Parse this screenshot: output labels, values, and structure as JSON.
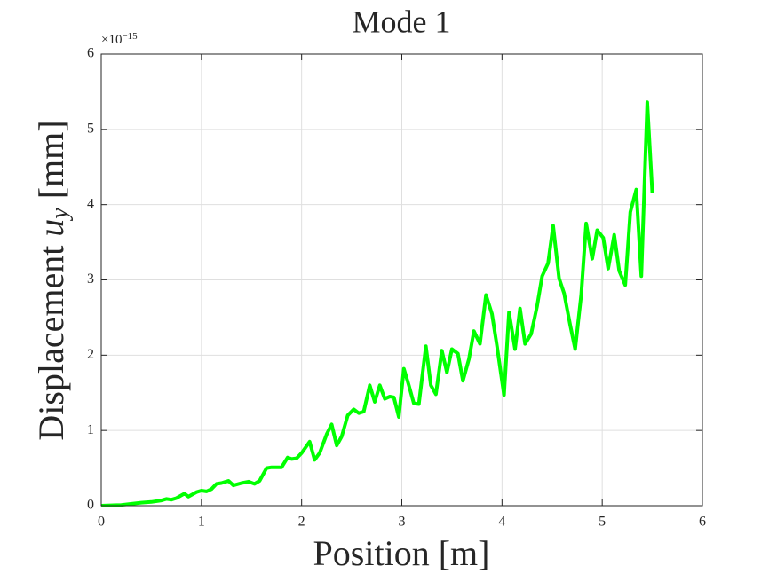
{
  "chart_data": {
    "type": "line",
    "title": "Mode 1",
    "xlabel": "Position [m]",
    "ylabel": {
      "text": "Displacement",
      "symbol": "u",
      "subscript": "y",
      "unit": "[mm]"
    },
    "y_exponent": {
      "base": "×10",
      "power": "−15"
    },
    "xlim": [
      0,
      6
    ],
    "xticks": [
      0,
      1,
      2,
      3,
      4,
      5,
      6
    ],
    "ylim": [
      0,
      6
    ],
    "yticks": [
      0,
      1,
      2,
      3,
      4,
      5,
      6
    ],
    "grid": true,
    "series": [
      {
        "color": "#00ff00",
        "x": [
          0,
          0.2,
          0.4,
          0.5,
          0.6,
          0.65,
          0.7,
          0.75,
          0.83,
          0.87,
          0.95,
          1.0,
          1.05,
          1.1,
          1.15,
          1.2,
          1.27,
          1.32,
          1.4,
          1.47,
          1.53,
          1.58,
          1.65,
          1.7,
          1.8,
          1.86,
          1.9,
          1.95,
          2.0,
          2.08,
          2.13,
          2.18,
          2.25,
          2.3,
          2.35,
          2.4,
          2.46,
          2.52,
          2.57,
          2.62,
          2.68,
          2.73,
          2.78,
          2.83,
          2.88,
          2.92,
          2.97,
          3.02,
          3.07,
          3.12,
          3.17,
          3.24,
          3.29,
          3.34,
          3.4,
          3.45,
          3.5,
          3.56,
          3.61,
          3.67,
          3.72,
          3.78,
          3.84,
          3.9,
          3.95,
          4.02,
          4.07,
          4.13,
          4.18,
          4.23,
          4.29,
          4.35,
          4.4,
          4.46,
          4.51,
          4.57,
          4.62,
          4.68,
          4.73,
          4.79,
          4.84,
          4.9,
          4.95,
          5.01,
          5.06,
          5.12,
          5.17,
          5.23,
          5.28,
          5.34,
          5.39,
          5.45,
          5.5
        ],
        "values": [
          0,
          0.01,
          0.04,
          0.05,
          0.07,
          0.09,
          0.08,
          0.1,
          0.16,
          0.12,
          0.18,
          0.2,
          0.19,
          0.22,
          0.29,
          0.3,
          0.33,
          0.27,
          0.3,
          0.32,
          0.29,
          0.33,
          0.5,
          0.51,
          0.51,
          0.64,
          0.62,
          0.63,
          0.7,
          0.85,
          0.61,
          0.7,
          0.95,
          1.08,
          0.8,
          0.92,
          1.2,
          1.28,
          1.23,
          1.25,
          1.6,
          1.38,
          1.6,
          1.42,
          1.45,
          1.44,
          1.18,
          1.82,
          1.6,
          1.36,
          1.35,
          2.12,
          1.6,
          1.48,
          2.06,
          1.77,
          2.08,
          2.02,
          1.66,
          1.95,
          2.32,
          2.15,
          2.8,
          2.55,
          2.12,
          1.47,
          2.57,
          2.08,
          2.62,
          2.15,
          2.28,
          2.65,
          3.05,
          3.22,
          3.72,
          3.02,
          2.82,
          2.4,
          2.08,
          2.8,
          3.75,
          3.28,
          3.66,
          3.56,
          3.15,
          3.6,
          3.12,
          2.93,
          3.9,
          4.2,
          3.05,
          5.36,
          4.15
        ]
      }
    ]
  }
}
